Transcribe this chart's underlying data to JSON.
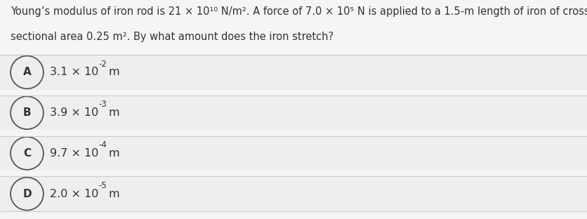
{
  "question_line1": "Young’s modulus of iron rod is 21 × 10¹⁰ N/m². A force of 7.0 × 10⁵ N is applied to a 1.5-m length of iron of cross",
  "question_line2": "sectional area 0.25 m². By what amount does the iron stretch?",
  "options": [
    {
      "label": "A",
      "text": "3.1 × 10^-2 m"
    },
    {
      "label": "B",
      "text": "3.9 × 10^-3 m"
    },
    {
      "label": "C",
      "text": "9.7 × 10^-4 m"
    },
    {
      "label": "D",
      "text": "2.0 × 10^-5 m"
    }
  ],
  "bg_color": "#f5f5f5",
  "option_bg_color": "#eeeeee",
  "text_color": "#333333",
  "circle_edge_color": "#555555",
  "circle_bg_color": "#eeeeee",
  "separator_color": "#cccccc",
  "font_size_question": 10.5,
  "font_size_option": 11.5,
  "font_size_label": 11.0,
  "font_size_exp": 8.5
}
